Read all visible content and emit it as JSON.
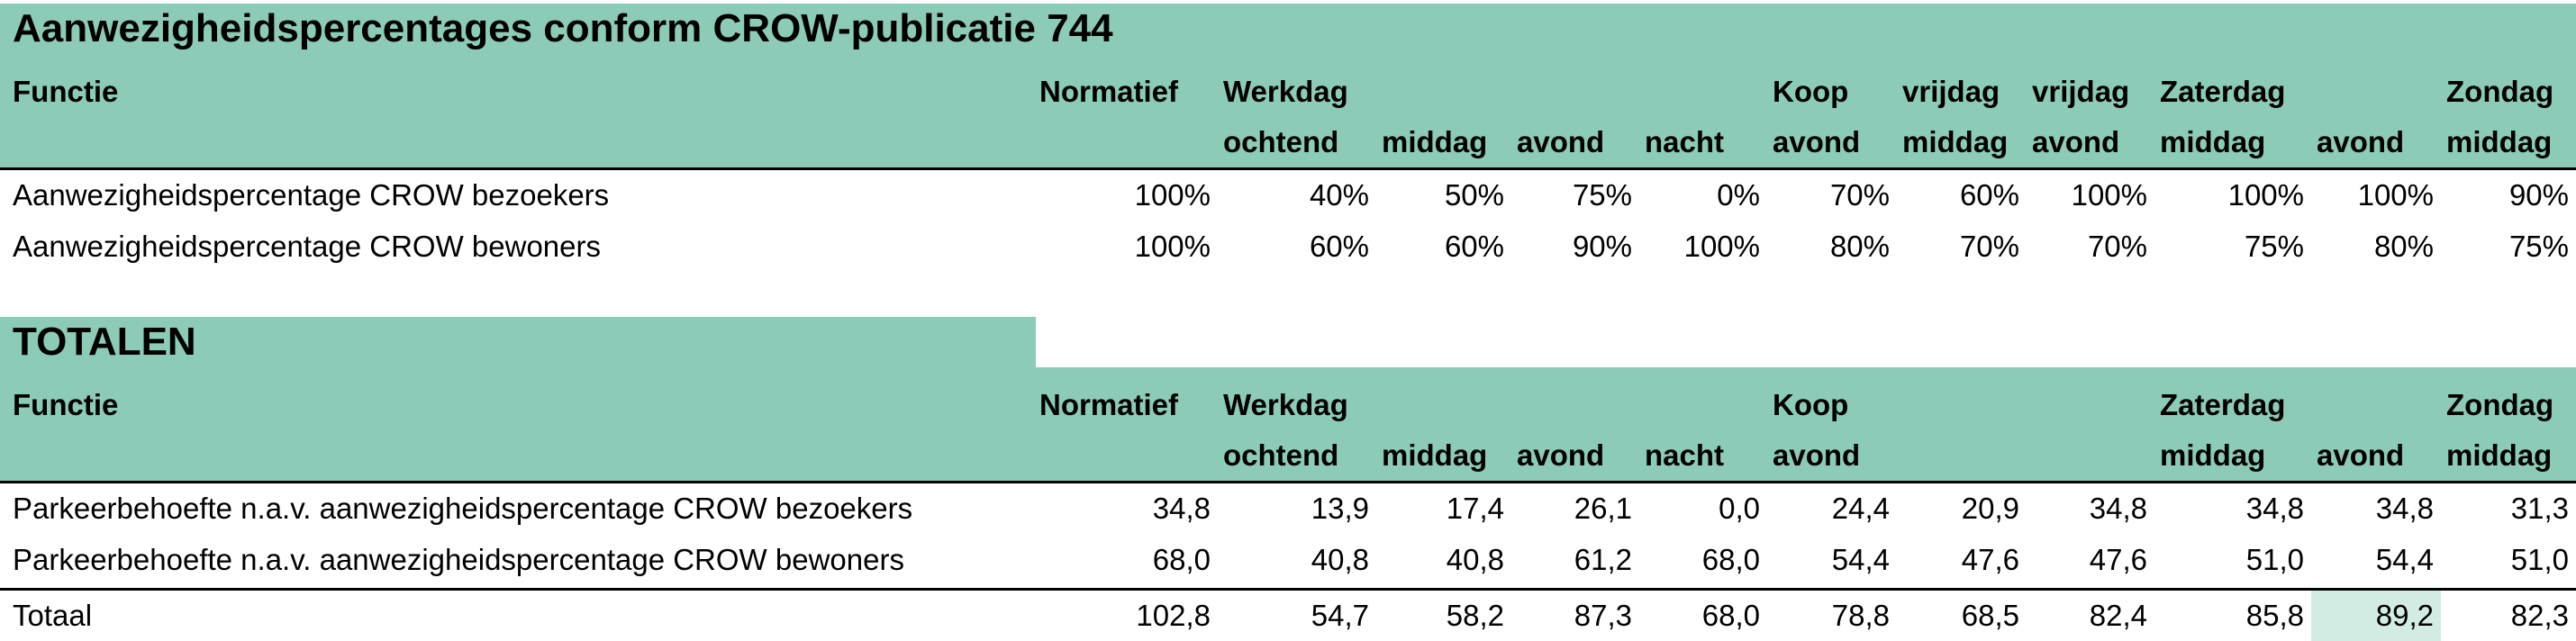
{
  "section1": {
    "title": "Aanwezigheidspercentages conform CROW-publicatie 744",
    "header": {
      "functie": "Functie",
      "top": [
        "Normatief",
        "Werkdag",
        "",
        "",
        "",
        "Koop",
        "vrijdag",
        "vrijdag",
        "Zaterdag",
        "",
        "Zondag"
      ],
      "bottom": [
        "",
        "ochtend",
        "middag",
        "avond",
        "nacht",
        "avond",
        "middag",
        "avond",
        "middag",
        "avond",
        "middag"
      ]
    },
    "rows": [
      {
        "label": "Aanwezigheidspercentage CROW bezoekers",
        "values": [
          "100%",
          "40%",
          "50%",
          "75%",
          "0%",
          "70%",
          "60%",
          "100%",
          "100%",
          "100%",
          "90%"
        ]
      },
      {
        "label": "Aanwezigheidspercentage CROW bewoners",
        "values": [
          "100%",
          "60%",
          "60%",
          "90%",
          "100%",
          "80%",
          "70%",
          "70%",
          "75%",
          "80%",
          "75%"
        ]
      }
    ]
  },
  "section2": {
    "title": "TOTALEN",
    "header": {
      "functie": "Functie",
      "top": [
        "Normatief",
        "Werkdag",
        "",
        "",
        "",
        "Koop",
        "",
        "",
        "Zaterdag",
        "",
        "Zondag"
      ],
      "bottom": [
        "",
        "ochtend",
        "middag",
        "avond",
        "nacht",
        "avond",
        "",
        "",
        "middag",
        "avond",
        "middag"
      ]
    },
    "rows": [
      {
        "label": "Parkeerbehoefte n.a.v. aanwezigheidspercentage CROW bezoekers",
        "values": [
          "34,8",
          "13,9",
          "17,4",
          "26,1",
          "0,0",
          "24,4",
          "20,9",
          "34,8",
          "34,8",
          "34,8",
          "31,3"
        ]
      },
      {
        "label": "Parkeerbehoefte n.a.v. aanwezigheidspercentage CROW bewoners",
        "values": [
          "68,0",
          "40,8",
          "40,8",
          "61,2",
          "68,0",
          "54,4",
          "47,6",
          "47,6",
          "51,0",
          "54,4",
          "51,0"
        ]
      }
    ],
    "total": {
      "label": "Totaal",
      "values": [
        "102,8",
        "54,7",
        "58,2",
        "87,3",
        "68,0",
        "78,8",
        "68,5",
        "82,4",
        "85,8",
        "89,2",
        "82,3"
      ]
    }
  },
  "colors": {
    "header_band": "#8ccbb7",
    "highlight": "#d2ece3"
  },
  "highlight_cell": {
    "row": "total",
    "column_index": 9
  }
}
